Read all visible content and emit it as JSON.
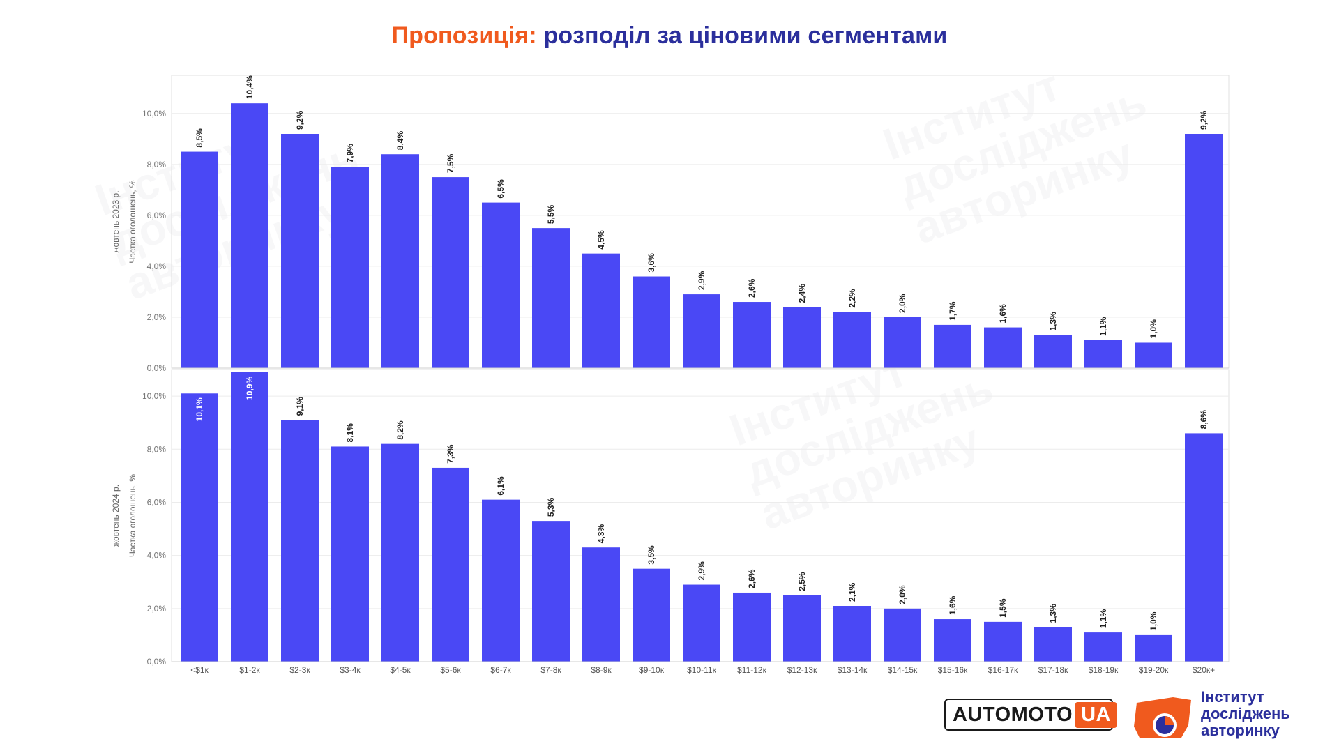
{
  "title": {
    "part1": "Пропозиція:",
    "part2": " розподіл за ціновими сегментами"
  },
  "watermark": {
    "line1": "Інститут",
    "line2": "досліджень",
    "line3": "авторинку"
  },
  "logos": {
    "automoto_part1": "AUTOMOTO",
    "automoto_part2": "UA",
    "institute_line1": "Інститут",
    "institute_line2": "досліджень",
    "institute_line3": "авторинку"
  },
  "colors": {
    "bar": "#4a48f5",
    "title_accent": "#f05a1e",
    "title_main": "#2b2f9c"
  },
  "chart_data": [
    {
      "type": "bar",
      "title": "",
      "ylabel_line1": "жовтень 2023 р.",
      "ylabel_line2": "Частка оголошень, %",
      "ylim": [
        0,
        11.5
      ],
      "yticks": [
        "0,0%",
        "2,0%",
        "4,0%",
        "6,0%",
        "8,0%",
        "10,0%"
      ],
      "ytick_values": [
        0,
        2,
        4,
        6,
        8,
        10
      ],
      "grid": true,
      "categories": [
        "<$1к",
        "$1-2к",
        "$2-3к",
        "$3-4к",
        "$4-5к",
        "$5-6к",
        "$6-7к",
        "$7-8к",
        "$8-9к",
        "$9-10к",
        "$10-11к",
        "$11-12к",
        "$12-13к",
        "$13-14к",
        "$14-15к",
        "$15-16к",
        "$16-17к",
        "$17-18к",
        "$18-19к",
        "$19-20к",
        "$20к+"
      ],
      "values": [
        8.5,
        10.4,
        9.2,
        7.9,
        8.4,
        7.5,
        6.5,
        5.5,
        4.5,
        3.6,
        2.9,
        2.6,
        2.4,
        2.2,
        2.0,
        1.7,
        1.6,
        1.3,
        1.1,
        1.0,
        9.2
      ],
      "labels": [
        "8,5%",
        "10,4%",
        "9,2%",
        "7,9%",
        "8,4%",
        "7,5%",
        "6,5%",
        "5,5%",
        "4,5%",
        "3,6%",
        "2,9%",
        "2,6%",
        "2,4%",
        "2,2%",
        "2,0%",
        "1,7%",
        "1,6%",
        "1,3%",
        "1,1%",
        "1,0%",
        "9,2%"
      ]
    },
    {
      "type": "bar",
      "title": "",
      "ylabel_line1": "жовтень 2024 р.",
      "ylabel_line2": "Частка оголошень, %",
      "ylim": [
        0,
        11.0
      ],
      "yticks": [
        "0,0%",
        "2,0%",
        "4,0%",
        "6,0%",
        "8,0%",
        "10,0%"
      ],
      "ytick_values": [
        0,
        2,
        4,
        6,
        8,
        10
      ],
      "grid": true,
      "categories": [
        "<$1к",
        "$1-2к",
        "$2-3к",
        "$3-4к",
        "$4-5к",
        "$5-6к",
        "$6-7к",
        "$7-8к",
        "$8-9к",
        "$9-10к",
        "$10-11к",
        "$11-12к",
        "$12-13к",
        "$13-14к",
        "$14-15к",
        "$15-16к",
        "$16-17к",
        "$17-18к",
        "$18-19к",
        "$19-20к",
        "$20к+"
      ],
      "values": [
        10.1,
        10.9,
        9.1,
        8.1,
        8.2,
        7.3,
        6.1,
        5.3,
        4.3,
        3.5,
        2.9,
        2.6,
        2.5,
        2.1,
        2.0,
        1.6,
        1.5,
        1.3,
        1.1,
        1.0,
        8.6
      ],
      "labels": [
        "10,1%",
        "10,9%",
        "9,1%",
        "8,1%",
        "8,2%",
        "7,3%",
        "6,1%",
        "5,3%",
        "4,3%",
        "3,5%",
        "2,9%",
        "2,6%",
        "2,5%",
        "2,1%",
        "2,0%",
        "1,6%",
        "1,5%",
        "1,3%",
        "1,1%",
        "1,0%",
        "8,6%"
      ]
    }
  ]
}
